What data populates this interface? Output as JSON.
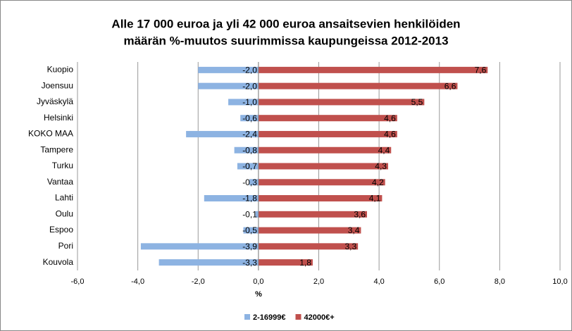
{
  "chart_data": {
    "type": "hbar",
    "title": [
      "Alle 17 000 euroa ja yli 42 000 euroa ansaitsevien henkilöiden",
      "määrän %-muutos suurimmissa kaupungeissa 2012-2013"
    ],
    "x_label": "%",
    "categories": [
      "Kuopio",
      "Joensuu",
      "Jyväskylä",
      "Helsinki",
      "KOKO MAA",
      "Tampere",
      "Turku",
      "Vantaa",
      "Lahti",
      "Oulu",
      "Espoo",
      "Pori",
      "Kouvola"
    ],
    "series": [
      {
        "name": "2-16999€",
        "color": "#8db3e2",
        "values": [
          -2.0,
          -2.0,
          -1.0,
          -0.6,
          -2.4,
          -0.8,
          -0.7,
          -0.3,
          -1.8,
          -0.1,
          -0.5,
          -3.9,
          -3.3
        ],
        "value_labels": [
          "-2,0",
          "-2,0",
          "-1,0",
          "-0,6",
          "-2,4",
          "-0,8",
          "-0,7",
          "-0,3",
          "-1,8",
          "-0,1",
          "-0,5",
          "-3,9",
          "-3,3"
        ]
      },
      {
        "name": "42000€+",
        "color": "#c0504d",
        "values": [
          7.6,
          6.6,
          5.5,
          4.6,
          4.6,
          4.4,
          4.3,
          4.2,
          4.1,
          3.6,
          3.4,
          3.3,
          1.8
        ],
        "value_labels": [
          "7,6",
          "6,6",
          "5,5",
          "4,6",
          "4,6",
          "4,4",
          "4,3",
          "4,2",
          "4,1",
          "3,6",
          "3,4",
          "3,3",
          "1,8"
        ]
      }
    ],
    "xlim": [
      -6,
      10
    ],
    "xticks": [
      {
        "value": -6,
        "label": "-6,0"
      },
      {
        "value": -4,
        "label": "-4,0"
      },
      {
        "value": -2,
        "label": "-2,0"
      },
      {
        "value": 0,
        "label": "0,0"
      },
      {
        "value": 2,
        "label": "2,0"
      },
      {
        "value": 4,
        "label": "4,0"
      },
      {
        "value": 6,
        "label": "6,0"
      },
      {
        "value": 8,
        "label": "8,0"
      },
      {
        "value": 10,
        "label": "10,0"
      }
    ],
    "grid": true,
    "legend": "bottom"
  }
}
